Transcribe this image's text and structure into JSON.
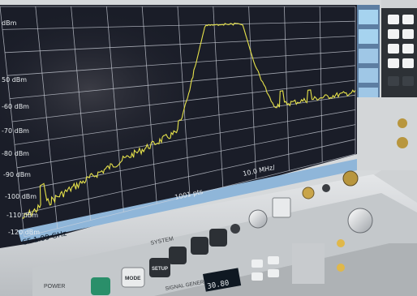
{
  "analyzer": {
    "ref_level_partial": "dBm",
    "y_axis_labels": [
      "50 dBm",
      "-60 dBm",
      "-70 dBm",
      "-80 dBm",
      "-90 dBm",
      "-100 dBm",
      "-110 dBm",
      "-120 dBm"
    ],
    "center_frequency": "CF 1.09 GHz",
    "sweep_points": "1001 pts",
    "span_per_div": "10.0 MHz/",
    "trace_color": "#e6e24a",
    "screen_color": "#1a1d28",
    "grid_color": "#cfd3dc"
  },
  "front_panel": {
    "system_label": "SYSTEM",
    "buttons": [
      "MODE",
      "SETUP"
    ],
    "power_label": "POWER"
  },
  "generator": {
    "label": "SIGNAL GENERATOR",
    "readout": "30.80"
  }
}
